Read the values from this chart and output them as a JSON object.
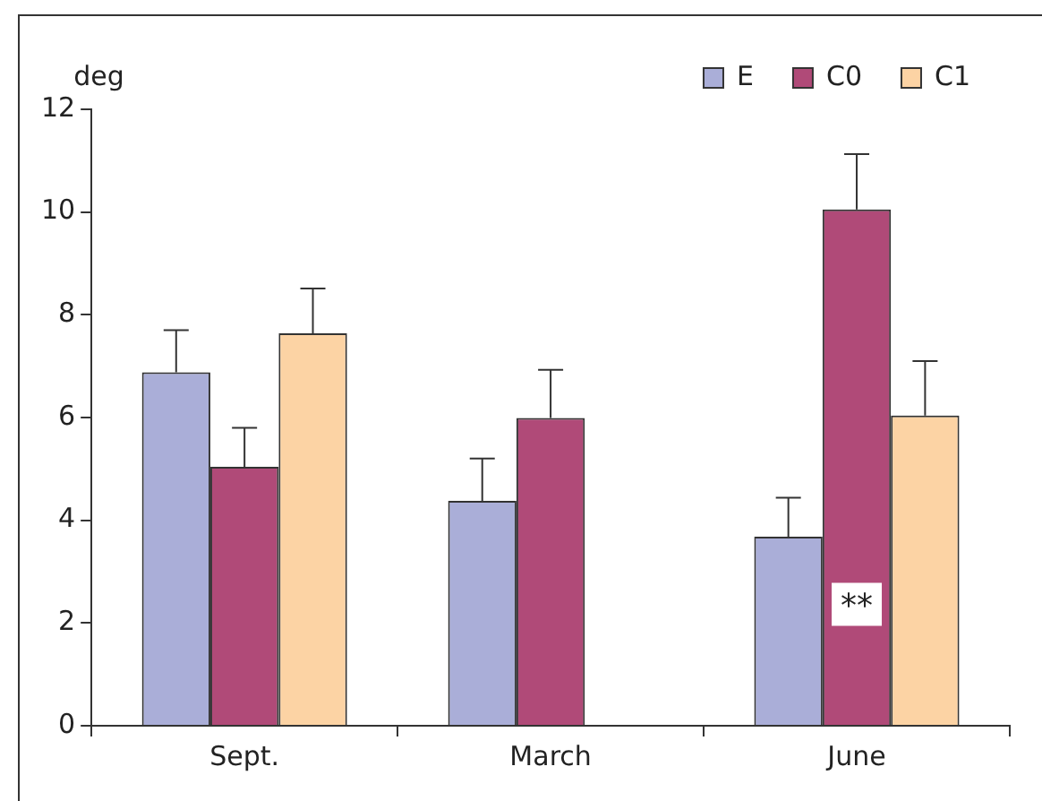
{
  "chart_data": {
    "type": "bar",
    "ylabel": "deg",
    "categories": [
      "Sept.",
      "March",
      "June"
    ],
    "series": [
      {
        "name": "E",
        "color": "#aaaed8",
        "values": [
          6.88,
          4.38,
          3.68
        ],
        "errors": [
          [
            6.88,
            7.7
          ],
          [
            4.38,
            5.2
          ],
          [
            3.68,
            4.44
          ]
        ]
      },
      {
        "name": "C0",
        "color": "#b04a78",
        "values": [
          5.04,
          5.99,
          10.05
        ],
        "errors": [
          [
            5.04,
            5.8
          ],
          [
            5.99,
            6.93
          ],
          [
            10.05,
            11.13
          ]
        ]
      },
      {
        "name": "C1",
        "color": "#fcd3a4",
        "values": [
          7.64,
          null,
          6.04
        ],
        "errors": [
          [
            7.64,
            8.51
          ],
          null,
          [
            6.04,
            7.1
          ]
        ]
      }
    ],
    "annotations": [
      {
        "text": "**",
        "x": "June",
        "y": 2.4
      }
    ],
    "ylim": [
      0,
      12
    ],
    "yticks": [
      0,
      2,
      4,
      6,
      8,
      10,
      12
    ],
    "grid": false,
    "legend": "top right"
  }
}
